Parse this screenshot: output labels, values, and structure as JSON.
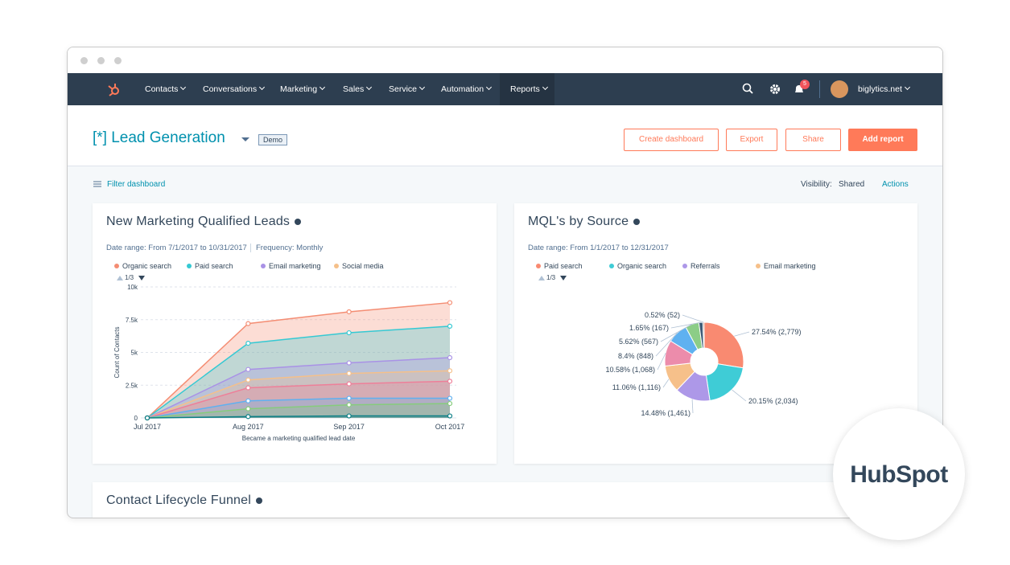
{
  "nav": {
    "items": [
      "Contacts",
      "Conversations",
      "Marketing",
      "Sales",
      "Service",
      "Automation",
      "Reports"
    ],
    "notifications": "5",
    "account": "biglytics.net"
  },
  "header": {
    "title": "[*] Lead Generation",
    "tag": "Demo",
    "buttons": [
      "Create dashboard",
      "Export",
      "Share",
      "Add report"
    ]
  },
  "toolbar": {
    "filter": "Filter dashboard",
    "visibility_label": "Visibility:",
    "visibility": "Shared",
    "actions": "Actions"
  },
  "chart_data": [
    {
      "type": "area",
      "title": "New Marketing Qualified Leads",
      "date_range": "Date range: From 7/1/2017 to 10/31/2017",
      "frequency": "Frequency: Monthly",
      "legend_page": "1/3",
      "categories": [
        "Jul 2017",
        "Aug 2017",
        "Sep 2017",
        "Oct 2017"
      ],
      "x_label": "Became a marketing qualified lead date",
      "y_label": "Count of Contacts",
      "ylim": [
        0,
        10000
      ],
      "yticks": [
        0,
        {
          "value": 2500,
          "label": "2.5k"
        },
        {
          "value": 5000,
          "label": "5k"
        },
        {
          "value": 7500,
          "label": "7.5k"
        },
        {
          "value": 10000,
          "label": "10k"
        }
      ],
      "grid": true,
      "series": [
        {
          "name": "Organic search",
          "color": "#f48d73",
          "values": [
            0,
            7200,
            8100,
            8800
          ]
        },
        {
          "name": "Paid search",
          "color": "#35c9d3",
          "values": [
            0,
            5700,
            6500,
            7000
          ]
        },
        {
          "name": "Email marketing",
          "color": "#a992e6",
          "values": [
            0,
            3700,
            4200,
            4600
          ]
        },
        {
          "name": "Social media",
          "color": "#f5c08a",
          "values": [
            0,
            2900,
            3400,
            3600
          ]
        },
        {
          "color": "#ee7f99",
          "values": [
            0,
            2300,
            2600,
            2800
          ]
        },
        {
          "color": "#5fb0f0",
          "values": [
            0,
            1300,
            1500,
            1500
          ]
        },
        {
          "color": "#86cc7c",
          "values": [
            0,
            700,
            1000,
            1100
          ]
        },
        {
          "color": "#0b7f86",
          "values": [
            0,
            100,
            150,
            150
          ]
        }
      ]
    },
    {
      "type": "pie",
      "title": "MQL's by Source",
      "date_range": "Date range: From 1/1/2017 to 12/31/2017",
      "legend_page": "1/3",
      "legend": [
        {
          "name": "Paid search",
          "color": "#f98a71"
        },
        {
          "name": "Organic search",
          "color": "#3fccd6"
        },
        {
          "name": "Referrals",
          "color": "#ad98e8"
        },
        {
          "name": "Email marketing",
          "color": "#f6c08a"
        }
      ],
      "values": [
        2779,
        2034,
        1461,
        1116,
        1068,
        848,
        567,
        167,
        52
      ],
      "value_labels": [
        "27.54% (2,779)",
        "20.15% (2,034)",
        "14.48% (1,461)",
        "11.06% (1,116)",
        "10.58% (1,068)",
        "8.4% (848)",
        "5.62% (567)",
        "1.65% (167)",
        "0.52% (52)"
      ],
      "colors": [
        "#f98a71",
        "#3fccd6",
        "#ad98e8",
        "#f6c08a",
        "#ec8cab",
        "#5fb1f0",
        "#8ccd87",
        "#3f5d78",
        "#a8604a"
      ]
    }
  ],
  "funnel": {
    "title": "Contact Lifecycle Funnel"
  },
  "badge": {
    "brand": "HubSpot"
  }
}
